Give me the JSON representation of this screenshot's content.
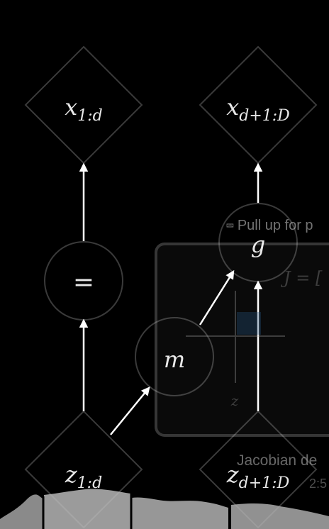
{
  "diagram": {
    "nodes": {
      "x_left": {
        "base": "x",
        "sub": "1:d"
      },
      "x_right": {
        "base": "x",
        "sub": "d+1:D"
      },
      "identity": {
        "label": "="
      },
      "coupling": {
        "label": "g"
      },
      "conditioner": {
        "label": "m"
      },
      "z_left": {
        "base": "z",
        "sub": "1:d"
      },
      "z_right": {
        "base": "z",
        "sub": "d+1:D"
      }
    },
    "colors": {
      "stroke": "#3a3a3a",
      "arrow": "#ffffff",
      "text": "#e8e8e8",
      "background": "#000000"
    }
  },
  "overlay": {
    "pull_up_icon": "double-chevron-up-icon",
    "pull_up_text": "Pull up for p",
    "preview_card": {
      "formula_prefix": "J = [",
      "axis_label": "z",
      "accent_color": "#1f4e79"
    },
    "jacobian_title": "Jacobian de",
    "jacobian_time": "2:5"
  }
}
